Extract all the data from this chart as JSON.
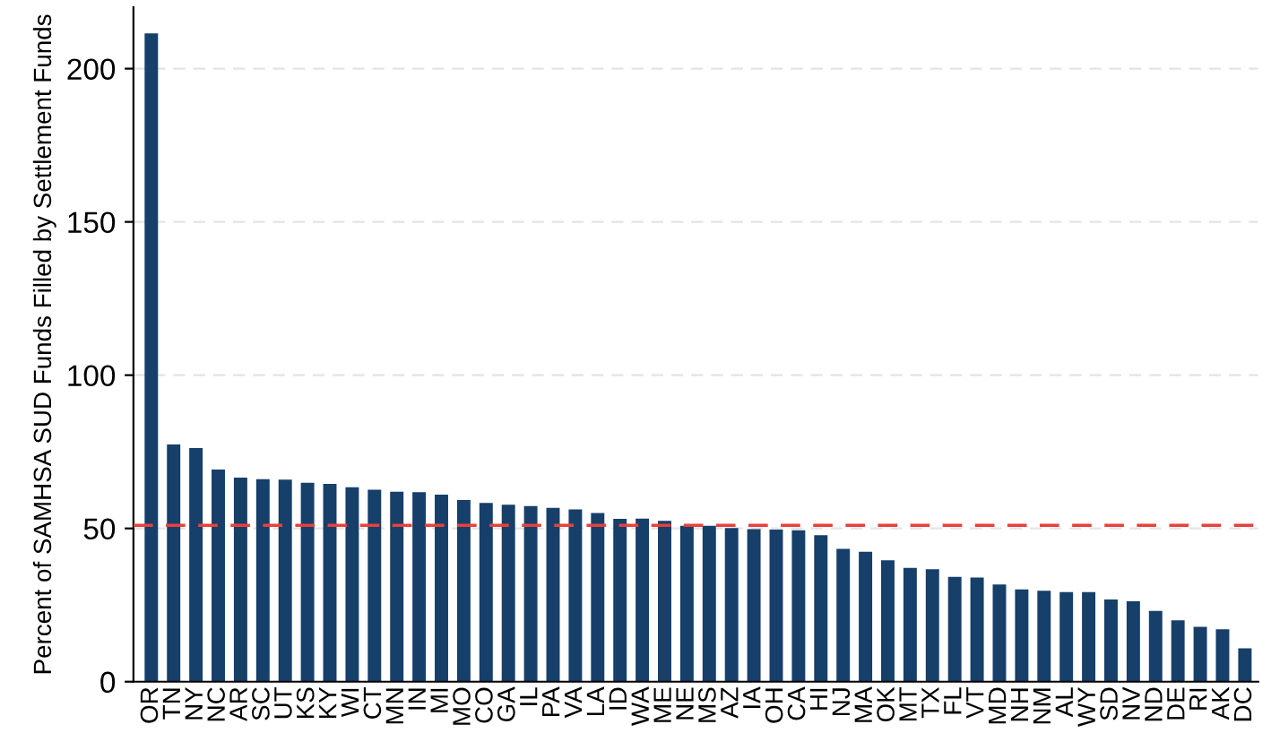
{
  "chart_data": {
    "type": "bar",
    "ylabel": "Percent of SAMHSA SUD Funds Filled by Settlement Funds",
    "categories": [
      "OR",
      "TN",
      "NY",
      "NC",
      "AR",
      "SC",
      "UT",
      "KS",
      "KY",
      "WI",
      "CT",
      "MN",
      "IN",
      "MI",
      "MO",
      "CO",
      "GA",
      "IL",
      "PA",
      "VA",
      "LA",
      "ID",
      "WA",
      "ME",
      "NE",
      "MS",
      "AZ",
      "IA",
      "OH",
      "CA",
      "HI",
      "NJ",
      "MA",
      "OK",
      "MT",
      "TX",
      "FL",
      "VT",
      "MD",
      "NH",
      "NM",
      "AL",
      "WY",
      "SD",
      "NV",
      "ND",
      "DE",
      "RI",
      "AK",
      "DC"
    ],
    "values": [
      211.5,
      77.4,
      76.2,
      69.2,
      66.6,
      66.1,
      65.9,
      64.9,
      64.5,
      63.4,
      62.6,
      62.0,
      61.8,
      61.0,
      59.3,
      58.3,
      57.7,
      57.3,
      56.7,
      56.2,
      55.0,
      53.1,
      53.2,
      52.5,
      50.9,
      50.9,
      50.1,
      49.8,
      49.6,
      49.4,
      47.8,
      43.3,
      42.4,
      39.6,
      37.1,
      36.7,
      34.2,
      34.0,
      31.7,
      30.1,
      29.7,
      29.2,
      29.2,
      26.8,
      26.2,
      23.1,
      20.0,
      17.9,
      17.1,
      10.9
    ],
    "color": "#163f6a",
    "ylim": [
      0,
      220
    ],
    "yticks": [
      0,
      50,
      100,
      150,
      200
    ],
    "grid": "y",
    "ref_lines": [
      {
        "axis": "y",
        "value": 51,
        "color": "#e8413c",
        "line_style": "dashed"
      }
    ]
  }
}
